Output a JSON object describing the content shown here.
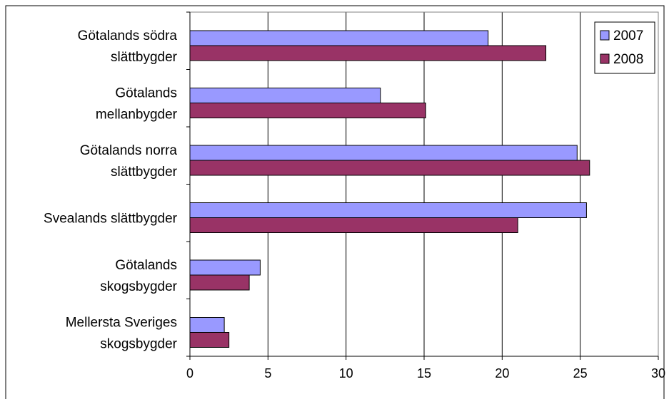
{
  "chart_data": {
    "type": "bar",
    "orientation": "horizontal",
    "categories": [
      [
        "Götalands södra",
        "slättbygder"
      ],
      [
        "Götalands",
        "mellanbygder"
      ],
      [
        "Götalands norra",
        "slättbygder"
      ],
      [
        "Svealands slättbygder"
      ],
      [
        "Götalands",
        "skogsbygder"
      ],
      [
        "Mellersta Sveriges",
        "skogsbygder"
      ]
    ],
    "series": [
      {
        "name": "2007",
        "color": "#9999ff",
        "values": [
          19.1,
          12.2,
          24.8,
          25.4,
          4.5,
          2.2
        ]
      },
      {
        "name": "2008",
        "color": "#993366",
        "values": [
          22.8,
          15.1,
          25.6,
          21.0,
          3.8,
          2.5
        ]
      }
    ],
    "xlim": [
      0,
      30
    ],
    "xticks": [
      0,
      5,
      10,
      15,
      20,
      25,
      30
    ],
    "grid": "vertical",
    "legend": "top-right",
    "title": "",
    "xlabel": "",
    "ylabel": ""
  }
}
